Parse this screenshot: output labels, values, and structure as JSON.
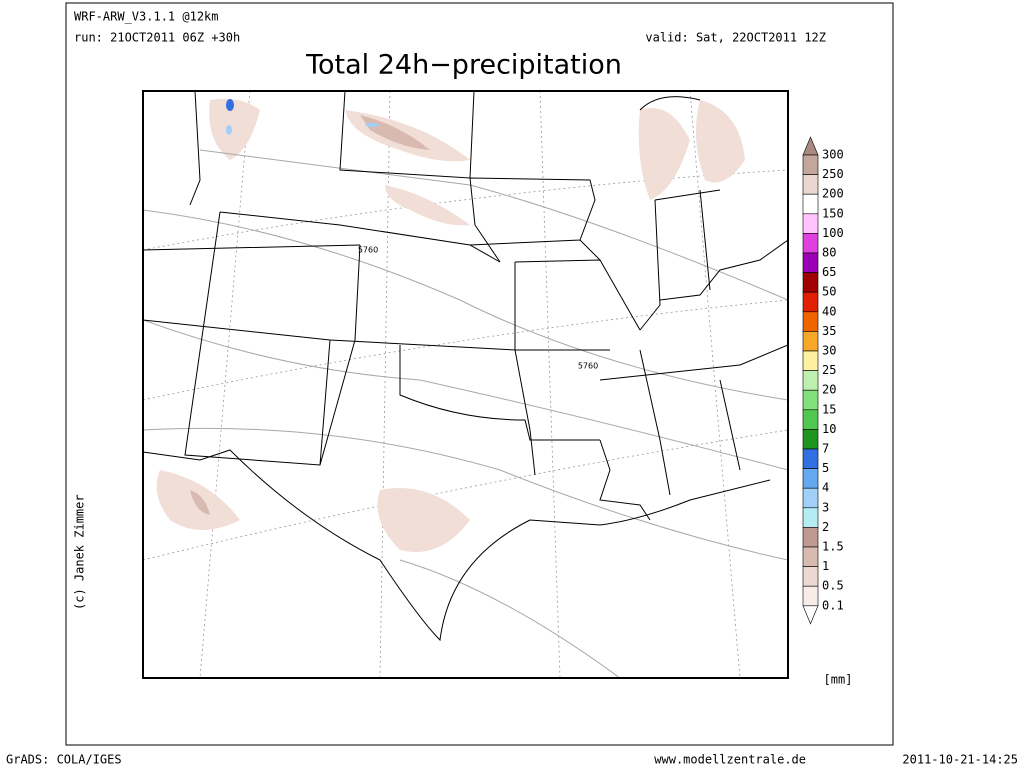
{
  "header": {
    "model": "WRF-ARW_V3.1.1 @12km",
    "run": "run: 21OCT2011 06Z +30h",
    "valid": "valid: Sat, 22OCT2011 12Z",
    "title": "Total 24h−precipitation"
  },
  "map": {
    "contour_labels": [
      "5760",
      "5760"
    ]
  },
  "legend": {
    "labels": [
      "300",
      "250",
      "200",
      "150",
      "100",
      "80",
      "65",
      "50",
      "40",
      "35",
      "30",
      "25",
      "20",
      "15",
      "10",
      "7",
      "5",
      "4",
      "3",
      "2",
      "1.5",
      "1",
      "0.5",
      "0.1"
    ],
    "colors": [
      "#a88a80",
      "#c4a69c",
      "#ead8d0",
      "#ffffff",
      "#ffc4ff",
      "#e040e0",
      "#9c00b4",
      "#a00000",
      "#e02000",
      "#f06400",
      "#f8a828",
      "#fff0a0",
      "#c0f0b0",
      "#84e07c",
      "#50c850",
      "#1e961e",
      "#3070e0",
      "#64a8f0",
      "#a0d0f8",
      "#b4ecf4",
      "#c09a90",
      "#d8bab0",
      "#ecd8d0",
      "#f8ece8",
      "#ffffff"
    ],
    "unit": "[mm]"
  },
  "credit": "(c) Janek Zimmer",
  "footer": {
    "left": "GrADS: COLA/IGES",
    "center": "www.modellzentrale.de",
    "right": "2011-10-21-14:25"
  }
}
